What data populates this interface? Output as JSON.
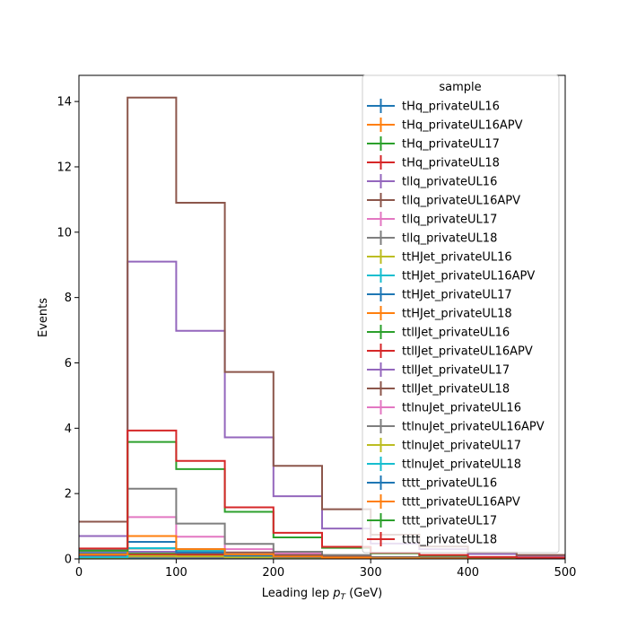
{
  "chart_data": {
    "type": "histogram",
    "xlabel": "Leading lep p_T (GeV)",
    "xlabel_main": "Leading lep ",
    "xlabel_p": "p",
    "xlabel_sub": "T",
    "xlabel_unit": " (GeV)",
    "ylabel": "Events",
    "xlim": [
      0,
      500
    ],
    "ylim": [
      0,
      14.8
    ],
    "xticks": [
      "0",
      "100",
      "200",
      "300",
      "400",
      "500"
    ],
    "yticks": [
      "0",
      "2",
      "4",
      "6",
      "8",
      "10",
      "12",
      "14"
    ],
    "bin_edges": [
      0,
      50,
      100,
      150,
      200,
      250,
      300,
      350,
      400,
      450,
      500
    ],
    "grid": false,
    "legend_title": "sample",
    "legend_placement": "upper right",
    "series": [
      {
        "name": "tHq_privateUL16",
        "color": "#1f77b4",
        "values": [
          0.05,
          0.1,
          0.07,
          0.04,
          0.02,
          0.01,
          0.01,
          0.005,
          0.003,
          0.002
        ]
      },
      {
        "name": "tHq_privateUL16APV",
        "color": "#ff7f0e",
        "values": [
          0.04,
          0.08,
          0.06,
          0.03,
          0.02,
          0.01,
          0.005,
          0.003,
          0.002,
          0.001
        ]
      },
      {
        "name": "tHq_privateUL17",
        "color": "#2ca02c",
        "values": [
          0.08,
          0.16,
          0.12,
          0.06,
          0.03,
          0.02,
          0.01,
          0.006,
          0.004,
          0.003
        ]
      },
      {
        "name": "tHq_privateUL18",
        "color": "#d62728",
        "values": [
          0.12,
          0.22,
          0.17,
          0.09,
          0.05,
          0.03,
          0.015,
          0.01,
          0.006,
          0.004
        ]
      },
      {
        "name": "tllq_privateUL16",
        "color": "#9467bd",
        "values": [
          0.7,
          9.1,
          6.98,
          3.72,
          1.92,
          0.93,
          0.47,
          0.3,
          0.15,
          0.1
        ]
      },
      {
        "name": "tllq_privateUL16APV",
        "color": "#8c564b",
        "values": [
          1.14,
          14.12,
          10.9,
          5.72,
          2.85,
          1.52,
          0.74,
          0.38,
          0.2,
          0.12
        ]
      },
      {
        "name": "tllq_privateUL17",
        "color": "#e377c2",
        "values": [
          0.22,
          1.28,
          0.68,
          0.3,
          0.17,
          0.1,
          0.05,
          0.03,
          0.02,
          0.01
        ]
      },
      {
        "name": "tllq_privateUL18",
        "color": "#7f7f7f",
        "values": [
          0.3,
          2.15,
          1.08,
          0.46,
          0.22,
          0.12,
          0.06,
          0.04,
          0.02,
          0.01
        ]
      },
      {
        "name": "ttHJet_privateUL16",
        "color": "#bcbd22",
        "values": [
          0.01,
          0.03,
          0.03,
          0.02,
          0.01,
          0.01,
          0.005,
          0.003,
          0.002,
          0.001
        ]
      },
      {
        "name": "ttHJet_privateUL16APV",
        "color": "#17becf",
        "values": [
          0.01,
          0.03,
          0.02,
          0.02,
          0.01,
          0.005,
          0.003,
          0.002,
          0.001,
          0.001
        ]
      },
      {
        "name": "ttHJet_privateUL17",
        "color": "#1f77b4",
        "values": [
          0.02,
          0.05,
          0.04,
          0.03,
          0.02,
          0.01,
          0.006,
          0.004,
          0.002,
          0.001
        ]
      },
      {
        "name": "ttHJet_privateUL18",
        "color": "#ff7f0e",
        "values": [
          0.03,
          0.07,
          0.06,
          0.04,
          0.02,
          0.01,
          0.008,
          0.005,
          0.003,
          0.002
        ]
      },
      {
        "name": "ttllJet_privateUL16",
        "color": "#2ca02c",
        "values": [
          0.05,
          0.15,
          0.13,
          0.09,
          0.05,
          0.03,
          0.02,
          0.01,
          0.007,
          0.005
        ]
      },
      {
        "name": "ttllJet_privateUL16APV",
        "color": "#d62728",
        "values": [
          0.04,
          0.13,
          0.12,
          0.08,
          0.05,
          0.03,
          0.02,
          0.01,
          0.006,
          0.004
        ]
      },
      {
        "name": "ttllJet_privateUL17",
        "color": "#9467bd",
        "values": [
          0.08,
          0.22,
          0.2,
          0.14,
          0.08,
          0.05,
          0.03,
          0.02,
          0.01,
          0.008
        ]
      },
      {
        "name": "ttllJet_privateUL18",
        "color": "#8c564b",
        "values": [
          0.12,
          0.32,
          0.3,
          0.2,
          0.12,
          0.07,
          0.04,
          0.03,
          0.02,
          0.01
        ]
      },
      {
        "name": "ttlnuJet_privateUL16",
        "color": "#e377c2",
        "values": [
          0.02,
          0.06,
          0.05,
          0.04,
          0.02,
          0.01,
          0.008,
          0.005,
          0.003,
          0.002
        ]
      },
      {
        "name": "ttlnuJet_privateUL16APV",
        "color": "#7f7f7f",
        "values": [
          0.02,
          0.05,
          0.05,
          0.03,
          0.02,
          0.01,
          0.007,
          0.004,
          0.003,
          0.002
        ]
      },
      {
        "name": "ttlnuJet_privateUL17",
        "color": "#bcbd22",
        "values": [
          0.03,
          0.09,
          0.08,
          0.05,
          0.03,
          0.02,
          0.01,
          0.007,
          0.004,
          0.003
        ]
      },
      {
        "name": "ttlnuJet_privateUL18",
        "color": "#17becf",
        "values": [
          0.05,
          0.33,
          0.25,
          0.12,
          0.06,
          0.03,
          0.02,
          0.01,
          0.006,
          0.004
        ]
      },
      {
        "name": "tttt_privateUL16",
        "color": "#1f77b4",
        "values": [
          0.18,
          0.52,
          0.2,
          0.1,
          0.05,
          0.03,
          0.02,
          0.01,
          0.006,
          0.004
        ]
      },
      {
        "name": "tttt_privateUL16APV",
        "color": "#ff7f0e",
        "values": [
          0.14,
          0.7,
          0.3,
          0.14,
          0.07,
          0.04,
          0.02,
          0.01,
          0.008,
          0.005
        ]
      },
      {
        "name": "tttt_privateUL17",
        "color": "#2ca02c",
        "values": [
          0.25,
          3.58,
          2.75,
          1.44,
          0.66,
          0.34,
          0.17,
          0.1,
          0.05,
          0.03
        ]
      },
      {
        "name": "tttt_privateUL18",
        "color": "#d62728",
        "values": [
          0.32,
          3.93,
          3.0,
          1.58,
          0.8,
          0.37,
          0.19,
          0.12,
          0.06,
          0.04
        ]
      }
    ]
  }
}
